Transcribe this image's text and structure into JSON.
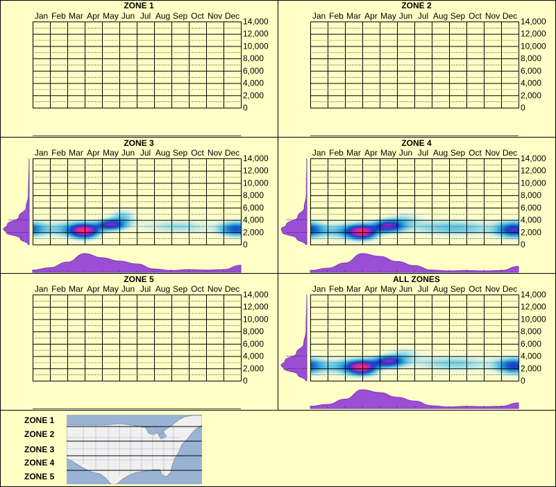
{
  "chart_data": [
    {
      "type": "heatmap",
      "title": "ZONE 1",
      "x": [
        "Jan",
        "Feb",
        "Mar",
        "Apr",
        "May",
        "Jun",
        "Jul",
        "Aug",
        "Sep",
        "Oct",
        "Nov",
        "Dec"
      ],
      "yticks": [
        "14,000",
        "12,000",
        "10,000",
        "8,000",
        "6,000",
        "4,000",
        "2,000",
        "0"
      ],
      "ylim": [
        0,
        14000
      ],
      "has_data": false,
      "month_density": [],
      "elev_density": [],
      "blobs": []
    },
    {
      "type": "heatmap",
      "title": "ZONE 2",
      "x": [
        "Jan",
        "Feb",
        "Mar",
        "Apr",
        "May",
        "Jun",
        "Jul",
        "Aug",
        "Sep",
        "Oct",
        "Nov",
        "Dec"
      ],
      "yticks": [
        "14,000",
        "12,000",
        "10,000",
        "8,000",
        "6,000",
        "4,000",
        "2,000",
        "0"
      ],
      "ylim": [
        0,
        14000
      ],
      "has_data": false,
      "month_density": [],
      "elev_density": [],
      "blobs": []
    },
    {
      "type": "heatmap",
      "title": "ZONE 3",
      "x": [
        "Jan",
        "Feb",
        "Mar",
        "Apr",
        "May",
        "Jun",
        "Jul",
        "Aug",
        "Sep",
        "Oct",
        "Nov",
        "Dec"
      ],
      "yticks": [
        "14,000",
        "12,000",
        "10,000",
        "8,000",
        "6,000",
        "4,000",
        "2,000",
        "0"
      ],
      "ylim": [
        0,
        14000
      ],
      "has_data": true,
      "month_density": [
        0.12,
        0.25,
        0.55,
        1.0,
        0.78,
        0.6,
        0.45,
        0.18,
        0.1,
        0.15,
        0.12,
        0.15,
        0.38
      ],
      "elev_density": [
        {
          "e": 0,
          "d": 0.04
        },
        {
          "e": 1000,
          "d": 0.35
        },
        {
          "e": 2000,
          "d": 0.9
        },
        {
          "e": 2500,
          "d": 1.0
        },
        {
          "e": 3200,
          "d": 0.85
        },
        {
          "e": 4500,
          "d": 0.4
        },
        {
          "e": 6000,
          "d": 0.12
        },
        {
          "e": 8000,
          "d": 0.03
        },
        {
          "e": 14000,
          "d": 0
        }
      ],
      "blobs": [
        {
          "m": 3.0,
          "e": 2200,
          "sm": 0.55,
          "se": 800,
          "w": 1.0
        },
        {
          "m": 4.5,
          "e": 3200,
          "sm": 0.55,
          "se": 600,
          "w": 0.8
        },
        {
          "m": 2.0,
          "e": 2500,
          "sm": 1.0,
          "se": 900,
          "w": 0.35
        },
        {
          "m": 5.2,
          "e": 4500,
          "sm": 0.5,
          "se": 900,
          "w": 0.3
        },
        {
          "m": 0.0,
          "e": 2500,
          "sm": 0.6,
          "se": 900,
          "w": 0.35
        },
        {
          "m": 11.4,
          "e": 2500,
          "sm": 0.6,
          "se": 800,
          "w": 0.35
        },
        {
          "m": 7.5,
          "e": 3000,
          "sm": 1.5,
          "se": 800,
          "w": 0.15
        },
        {
          "m": 9.0,
          "e": 2800,
          "sm": 1.2,
          "se": 800,
          "w": 0.15
        },
        {
          "m": 7.6,
          "e": 7500,
          "sm": 0.3,
          "se": 300,
          "w": 0.06
        }
      ]
    },
    {
      "type": "heatmap",
      "title": "ZONE 4",
      "x": [
        "Jan",
        "Feb",
        "Mar",
        "Apr",
        "May",
        "Jun",
        "Jul",
        "Aug",
        "Sep",
        "Oct",
        "Nov",
        "Dec"
      ],
      "yticks": [
        "14,000",
        "12,000",
        "10,000",
        "8,000",
        "6,000",
        "4,000",
        "2,000",
        "0"
      ],
      "ylim": [
        0,
        14000
      ],
      "has_data": true,
      "month_density": [
        0.1,
        0.22,
        0.5,
        1.0,
        0.85,
        0.58,
        0.36,
        0.12,
        0.08,
        0.1,
        0.08,
        0.1,
        0.32
      ],
      "elev_density": [
        {
          "e": 0,
          "d": 0.05
        },
        {
          "e": 1000,
          "d": 0.4
        },
        {
          "e": 2000,
          "d": 0.95
        },
        {
          "e": 2500,
          "d": 1.0
        },
        {
          "e": 3200,
          "d": 0.8
        },
        {
          "e": 4500,
          "d": 0.35
        },
        {
          "e": 6000,
          "d": 0.1
        },
        {
          "e": 8000,
          "d": 0.02
        },
        {
          "e": 14000,
          "d": 0
        }
      ],
      "blobs": [
        {
          "m": 3.0,
          "e": 2000,
          "sm": 0.55,
          "se": 800,
          "w": 1.0
        },
        {
          "m": 4.5,
          "e": 3000,
          "sm": 0.6,
          "se": 700,
          "w": 0.85
        },
        {
          "m": 2.0,
          "e": 2200,
          "sm": 1.0,
          "se": 900,
          "w": 0.4
        },
        {
          "m": 0.0,
          "e": 2400,
          "sm": 0.6,
          "se": 900,
          "w": 0.45
        },
        {
          "m": 11.4,
          "e": 2400,
          "sm": 0.6,
          "se": 900,
          "w": 0.4
        },
        {
          "m": 7.2,
          "e": 2800,
          "sm": 1.5,
          "se": 900,
          "w": 0.25
        },
        {
          "m": 9.2,
          "e": 2600,
          "sm": 1.3,
          "se": 900,
          "w": 0.22
        },
        {
          "m": 5.5,
          "e": 4200,
          "sm": 0.6,
          "se": 800,
          "w": 0.2
        }
      ]
    },
    {
      "type": "heatmap",
      "title": "ZONE 5",
      "x": [
        "Jan",
        "Feb",
        "Mar",
        "Apr",
        "May",
        "Jun",
        "Jul",
        "Aug",
        "Sep",
        "Oct",
        "Nov",
        "Dec"
      ],
      "yticks": [
        "14,000",
        "12,000",
        "10,000",
        "8,000",
        "6,000",
        "4,000",
        "2,000",
        "0"
      ],
      "ylim": [
        0,
        14000
      ],
      "has_data": false,
      "month_density": [],
      "elev_density": [],
      "blobs": []
    },
    {
      "type": "heatmap",
      "title": "ALL ZONES",
      "x": [
        "Jan",
        "Feb",
        "Mar",
        "Apr",
        "May",
        "Jun",
        "Jul",
        "Aug",
        "Sep",
        "Oct",
        "Nov",
        "Dec"
      ],
      "yticks": [
        "14,000",
        "12,000",
        "10,000",
        "8,000",
        "6,000",
        "4,000",
        "2,000",
        "0"
      ],
      "ylim": [
        0,
        14000
      ],
      "has_data": true,
      "month_density": [
        0.12,
        0.22,
        0.5,
        1.0,
        0.85,
        0.6,
        0.4,
        0.15,
        0.08,
        0.12,
        0.1,
        0.12,
        0.3
      ],
      "elev_density": [
        {
          "e": 0,
          "d": 0.04
        },
        {
          "e": 1000,
          "d": 0.35
        },
        {
          "e": 2000,
          "d": 0.9
        },
        {
          "e": 2500,
          "d": 1.0
        },
        {
          "e": 3200,
          "d": 0.85
        },
        {
          "e": 4500,
          "d": 0.4
        },
        {
          "e": 6000,
          "d": 0.12
        },
        {
          "e": 8000,
          "d": 0.03
        },
        {
          "e": 14000,
          "d": 0
        }
      ],
      "blobs": [
        {
          "m": 3.0,
          "e": 2100,
          "sm": 0.55,
          "se": 800,
          "w": 1.0
        },
        {
          "m": 4.5,
          "e": 3100,
          "sm": 0.6,
          "se": 650,
          "w": 0.85
        },
        {
          "m": 2.0,
          "e": 2300,
          "sm": 1.0,
          "se": 900,
          "w": 0.4
        },
        {
          "m": 0.0,
          "e": 2400,
          "sm": 0.6,
          "se": 900,
          "w": 0.4
        },
        {
          "m": 11.4,
          "e": 2400,
          "sm": 0.6,
          "se": 900,
          "w": 0.38
        },
        {
          "m": 7.3,
          "e": 2900,
          "sm": 1.5,
          "se": 900,
          "w": 0.2
        },
        {
          "m": 9.1,
          "e": 2700,
          "sm": 1.3,
          "se": 900,
          "w": 0.18
        },
        {
          "m": 5.4,
          "e": 4300,
          "sm": 0.6,
          "se": 800,
          "w": 0.22
        }
      ]
    }
  ],
  "legend": {
    "zones": [
      "ZONE 1",
      "ZONE 2",
      "ZONE 3",
      "ZONE 4",
      "ZONE 5"
    ]
  },
  "colors": {
    "background": "#ffffc6",
    "density_fill": "#9a4fd2",
    "density_stroke": "#7d3bbd",
    "grid": "#000000",
    "map_water": "#9ab3d4",
    "map_land": "#f0f0f0"
  }
}
